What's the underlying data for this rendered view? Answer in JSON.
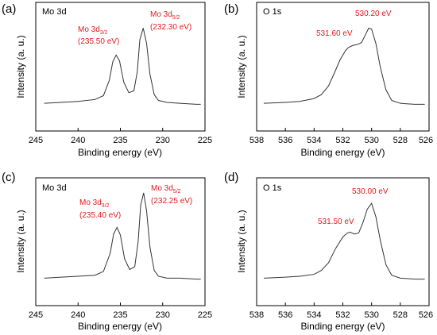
{
  "chart_data": [
    {
      "panel": "(a)",
      "type": "line",
      "title": "Mo 3d",
      "xlabel": "Binding energy (eV)",
      "ylabel": "Intensity (a. u.)",
      "xlim": [
        245,
        225
      ],
      "xticks": [
        "245",
        "240",
        "235",
        "230",
        "225"
      ],
      "x": [
        244,
        242,
        240,
        238,
        237,
        236.3,
        235.9,
        235.5,
        235.1,
        234.6,
        234.0,
        233.4,
        233.0,
        232.7,
        232.3,
        231.9,
        231.5,
        231.0,
        230.5,
        229.5,
        228,
        226,
        225.5
      ],
      "y": [
        0.02,
        0.03,
        0.04,
        0.06,
        0.1,
        0.26,
        0.45,
        0.52,
        0.46,
        0.24,
        0.13,
        0.15,
        0.35,
        0.68,
        0.8,
        0.64,
        0.32,
        0.11,
        0.05,
        0.03,
        0.02,
        0.01,
        0.01
      ],
      "annotations": [
        {
          "main": "Mo 3d",
          "sub": "3/2",
          "value": "(235.50 eV)"
        },
        {
          "main": "Mo 3d",
          "sub": "5/2",
          "value": "(232.30 eV)"
        }
      ]
    },
    {
      "panel": "(b)",
      "type": "line",
      "title": "O 1s",
      "xlabel": "Binding energy (eV)",
      "ylabel": "Intensity (a. u.)",
      "xlim": [
        538,
        526
      ],
      "xticks": [
        "538",
        "536",
        "534",
        "532",
        "530",
        "528",
        "526"
      ],
      "x": [
        537.5,
        536,
        535,
        534,
        533.5,
        533,
        532.6,
        532.2,
        531.8,
        531.6,
        531.3,
        531.0,
        530.7,
        530.4,
        530.2,
        530.0,
        529.7,
        529.4,
        529.0,
        528.6,
        528,
        527,
        526.3
      ],
      "y": [
        0.02,
        0.03,
        0.04,
        0.07,
        0.11,
        0.2,
        0.33,
        0.47,
        0.57,
        0.6,
        0.62,
        0.63,
        0.65,
        0.74,
        0.8,
        0.79,
        0.64,
        0.4,
        0.16,
        0.05,
        0.02,
        0.01,
        0.01
      ],
      "annotations": [
        {
          "value": "531.60 eV"
        },
        {
          "value": "530.20 eV"
        }
      ]
    },
    {
      "panel": "(c)",
      "type": "line",
      "title": "Mo 3d",
      "xlabel": "Binding energy (eV)",
      "ylabel": "Intensity (a. u.)",
      "xlim": [
        245,
        225
      ],
      "xticks": [
        "245",
        "240",
        "235",
        "230",
        "225"
      ],
      "x": [
        244,
        242,
        240,
        238,
        237,
        236.2,
        235.8,
        235.4,
        235.0,
        234.5,
        233.9,
        233.3,
        232.9,
        232.6,
        232.25,
        231.9,
        231.5,
        231.0,
        230.5,
        229.5,
        228,
        226,
        225.5
      ],
      "y": [
        0.02,
        0.03,
        0.04,
        0.05,
        0.09,
        0.28,
        0.48,
        0.55,
        0.47,
        0.22,
        0.11,
        0.14,
        0.4,
        0.78,
        0.91,
        0.72,
        0.34,
        0.1,
        0.04,
        0.02,
        0.02,
        0.01,
        0.01
      ],
      "annotations": [
        {
          "main": "Mo 3d",
          "sub": "3/2",
          "value": "(235.40 eV)"
        },
        {
          "main": "Mo 3d",
          "sub": "5/2",
          "value": "(232.25 eV)"
        }
      ]
    },
    {
      "panel": "(d)",
      "type": "line",
      "title": "O 1s",
      "xlabel": "Binding energy (eV)",
      "ylabel": "Intensity (a. u.)",
      "xlim": [
        538,
        526
      ],
      "xticks": [
        "538",
        "536",
        "534",
        "532",
        "530",
        "528",
        "526"
      ],
      "x": [
        537.5,
        536,
        535,
        534,
        533.5,
        533,
        532.5,
        532.0,
        531.7,
        531.5,
        531.2,
        530.9,
        530.6,
        530.3,
        530.0,
        529.7,
        529.4,
        529.0,
        528.6,
        528,
        527,
        526.3
      ],
      "y": [
        0.02,
        0.03,
        0.04,
        0.06,
        0.1,
        0.18,
        0.33,
        0.45,
        0.49,
        0.5,
        0.48,
        0.49,
        0.6,
        0.74,
        0.8,
        0.66,
        0.42,
        0.16,
        0.05,
        0.02,
        0.01,
        0.01
      ],
      "annotations": [
        {
          "value": "531.50 eV"
        },
        {
          "value": "530.00 eV"
        }
      ]
    }
  ]
}
